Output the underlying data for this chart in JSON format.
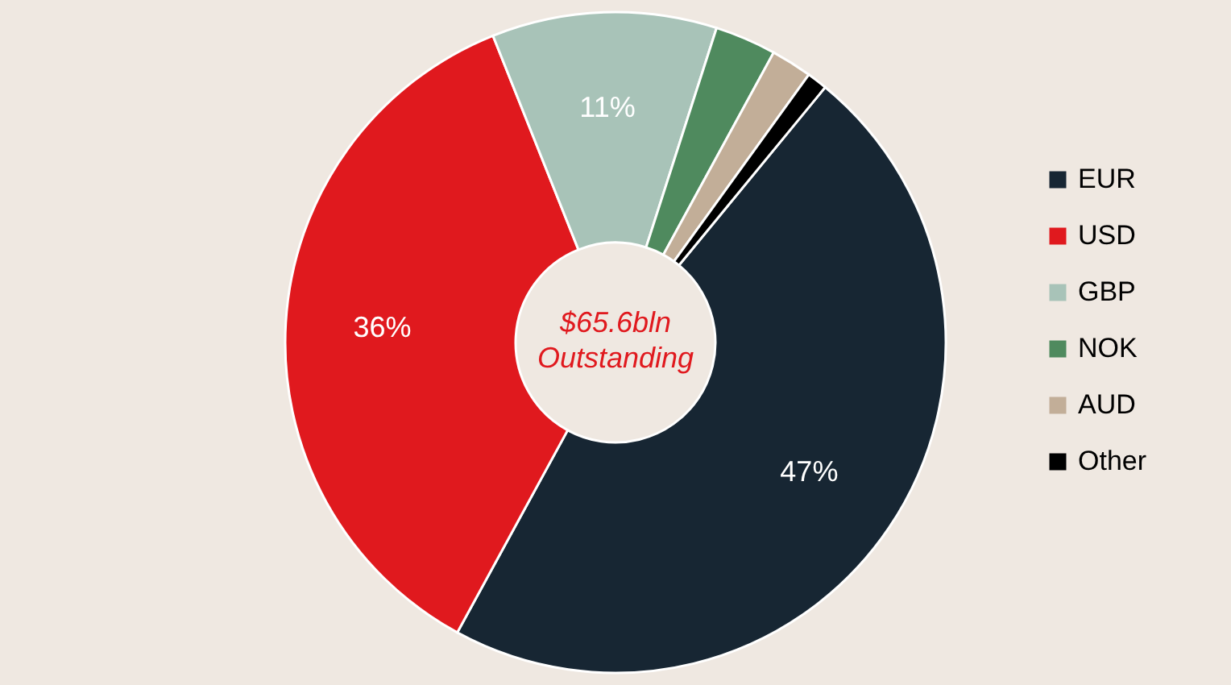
{
  "chart_data": {
    "type": "donut",
    "categories": [
      "EUR",
      "USD",
      "GBP",
      "NOK",
      "AUD",
      "Other"
    ],
    "values": [
      47,
      36,
      11,
      3,
      2,
      1
    ],
    "colors": [
      "#172633",
      "#e0191e",
      "#a8c3b8",
      "#4f8a5e",
      "#c2ae98",
      "#000000"
    ],
    "value_labels": [
      "47%",
      "36%",
      "11%",
      null,
      null,
      null
    ],
    "annotations": [
      "$65.6bln",
      "Outstanding"
    ],
    "legend": "right"
  }
}
